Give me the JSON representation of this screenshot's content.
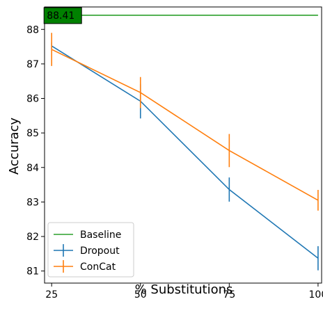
{
  "chart_data": {
    "type": "line",
    "xlabel": "% Substitutions",
    "ylabel": "Accuracy",
    "xlim": [
      23,
      101
    ],
    "ylim": [
      80.65,
      88.65
    ],
    "x_ticks": [
      25,
      50,
      75,
      100
    ],
    "y_ticks": [
      81,
      82,
      83,
      84,
      85,
      86,
      87,
      88
    ],
    "grid": false,
    "legend_position": "bottom-left",
    "annotation": {
      "text": "88.41",
      "x": 25,
      "y": 88.41,
      "box_color": "#008000"
    },
    "series": [
      {
        "name": "Baseline",
        "color": "#2ca02c",
        "style": "hline",
        "x": [
          25,
          100
        ],
        "values": [
          88.41,
          88.41
        ]
      },
      {
        "name": "Dropout",
        "color": "#1f77b4",
        "x": [
          25,
          50,
          75,
          100
        ],
        "values": [
          87.52,
          85.92,
          83.36,
          81.37
        ],
        "errors": [
          0.1,
          0.5,
          0.35,
          0.35
        ]
      },
      {
        "name": "ConCat",
        "color": "#ff7f0e",
        "x": [
          25,
          50,
          75,
          100
        ],
        "values": [
          87.42,
          86.17,
          84.49,
          83.05
        ],
        "errors": [
          0.48,
          0.45,
          0.48,
          0.3
        ]
      }
    ]
  }
}
